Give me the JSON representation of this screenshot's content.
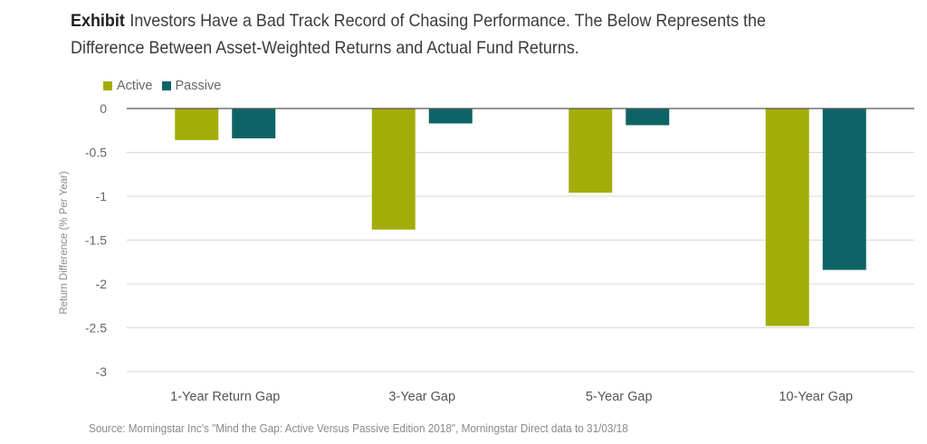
{
  "title": {
    "prefix": "Exhibit",
    "line1": "Investors Have a Bad Track Record of Chasing Performance. The Below Represents the",
    "line2": "Difference Between Asset-Weighted Returns and Actual Fund Returns."
  },
  "source": "Source: Morningstar Inc's \"Mind the Gap: Active Versus Passive Edition 2018\", Morningstar Direct data to 31/03/18",
  "colors": {
    "active": "#a3ad0a",
    "passive": "#0d6466",
    "grid": "#d9d9d9",
    "zero_line": "#555555"
  },
  "chart_data": {
    "type": "bar",
    "categories": [
      "1-Year Return Gap",
      "3-Year Gap",
      "5-Year Gap",
      "10-Year Gap"
    ],
    "series": [
      {
        "name": "Active",
        "values": [
          -0.36,
          -1.38,
          -0.96,
          -2.48
        ]
      },
      {
        "name": "Passive",
        "values": [
          -0.34,
          -0.17,
          -0.19,
          -1.84
        ]
      }
    ],
    "yticks": [
      0,
      -0.5,
      -1,
      -1.5,
      -2,
      -2.5,
      -3
    ],
    "ytick_labels": [
      "0",
      "-0.5",
      "-1",
      "-1.5",
      "-2",
      "-2.5",
      "-3"
    ],
    "ylim": [
      -3,
      0
    ],
    "ylabel": "Return Difference (% Per Year)",
    "xlabel": "",
    "grid": true,
    "legend_position": "top-left"
  }
}
